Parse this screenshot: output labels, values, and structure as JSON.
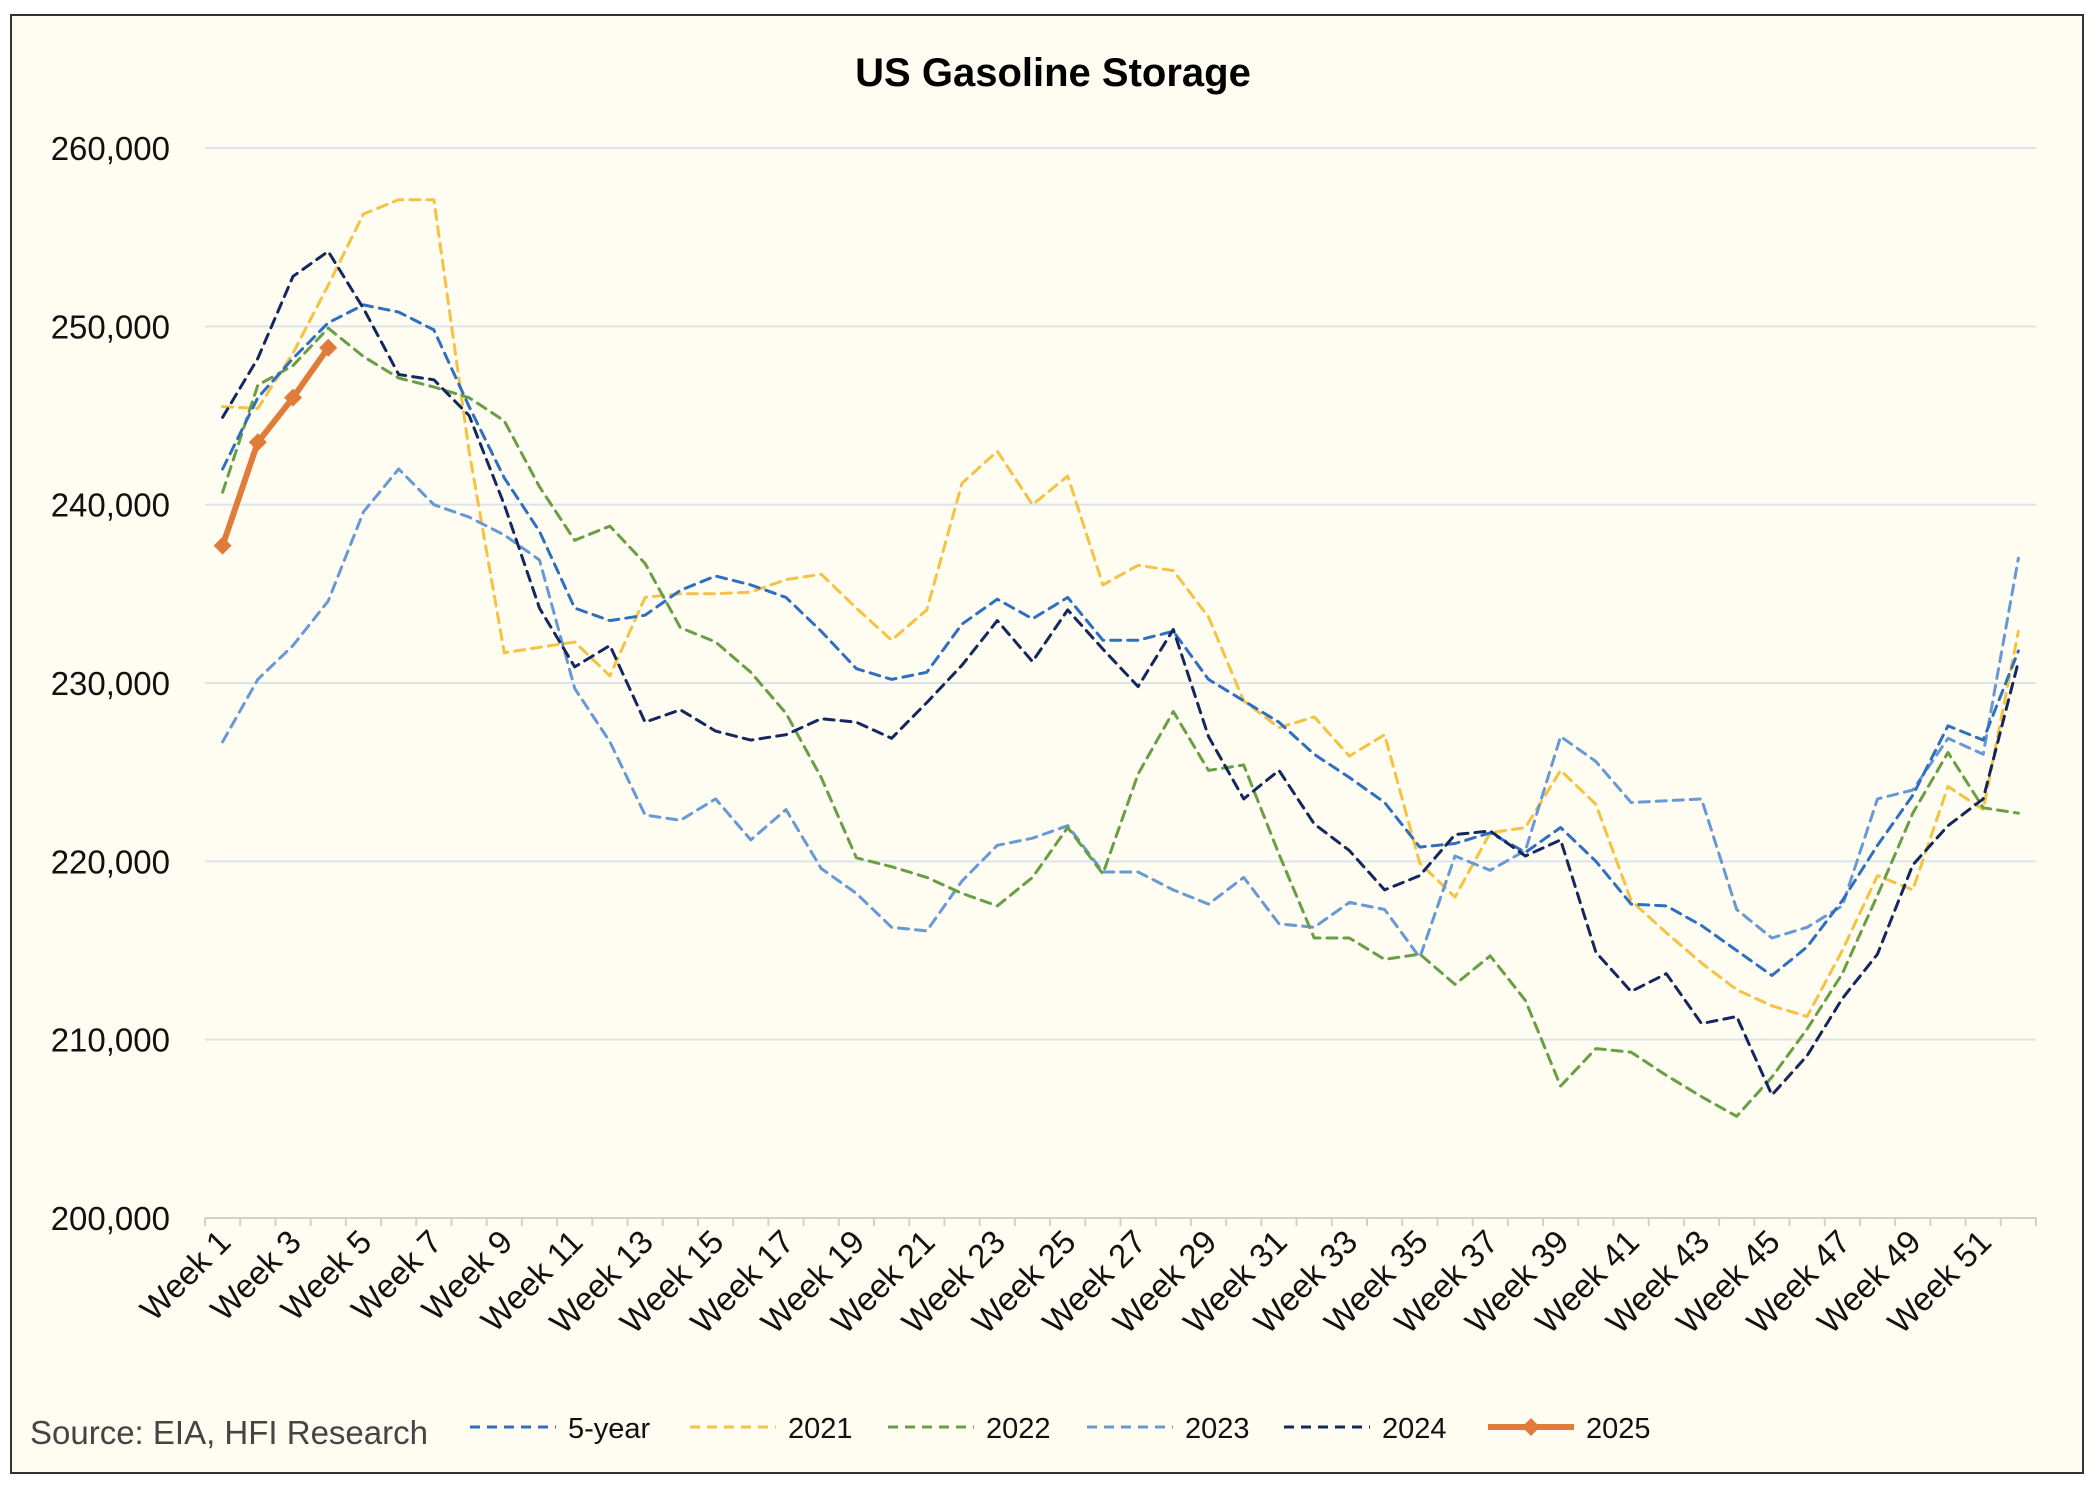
{
  "chart_data": {
    "type": "line",
    "title": "US Gasoline Storage",
    "source_note": "Source: EIA, HFI Research",
    "xlabel": "",
    "ylabel": "",
    "ylim": [
      200000,
      260000
    ],
    "y_ticks": [
      200000,
      210000,
      220000,
      230000,
      240000,
      250000,
      260000
    ],
    "y_tick_labels": [
      "200,000",
      "210,000",
      "220,000",
      "230,000",
      "240,000",
      "250,000",
      "260,000"
    ],
    "x_tick_labels": [
      "Week 1",
      "Week 3",
      "Week 5",
      "Week 7",
      "Week 9",
      "Week 11",
      "Week 13",
      "Week 15",
      "Week 17",
      "Week 19",
      "Week 21",
      "Week 23",
      "Week 25",
      "Week 27",
      "Week 29",
      "Week 31",
      "Week 33",
      "Week 35",
      "Week 37",
      "Week 39",
      "Week 41",
      "Week 43",
      "Week 45",
      "Week 47",
      "Week 49",
      "Week 51"
    ],
    "grid": true,
    "legend_position": "bottom",
    "series": [
      {
        "name": "5-year",
        "color": "#2e6fc0",
        "style": "dashed",
        "values": [
          242000,
          246000,
          248200,
          250200,
          251200,
          250800,
          249800,
          245500,
          241500,
          238500,
          234200,
          233500,
          233800,
          235200,
          236000,
          235500,
          234800,
          232900,
          230800,
          230200,
          230600,
          233300,
          234700,
          233600,
          234800,
          232400,
          232400,
          232900,
          230200,
          229000,
          227800,
          226000,
          224700,
          223300,
          220800,
          221000,
          221600,
          220500,
          221900,
          220000,
          217600,
          217500,
          216400,
          215000,
          213600,
          215200,
          217800,
          220900,
          223700,
          227600,
          226800,
          231800
        ]
      },
      {
        "name": "2021",
        "color": "#f5c242",
        "style": "dashed",
        "values": [
          245500,
          245400,
          248500,
          252300,
          256300,
          257100,
          257100,
          243000,
          231700,
          232000,
          232300,
          230400,
          234800,
          235000,
          235000,
          235100,
          235800,
          236100,
          234200,
          232400,
          234100,
          241200,
          243000,
          240000,
          241600,
          235500,
          236600,
          236300,
          233700,
          229000,
          227500,
          228100,
          225900,
          227100,
          219900,
          218000,
          221600,
          221900,
          225100,
          223200,
          217800,
          216000,
          214300,
          212800,
          211900,
          211300,
          215000,
          219200,
          218400,
          224200,
          222900,
          232900
        ]
      },
      {
        "name": "2022",
        "color": "#6a9e43",
        "style": "dashed",
        "values": [
          240700,
          246700,
          247800,
          249900,
          248300,
          247100,
          246600,
          246000,
          244700,
          241000,
          238000,
          238800,
          236700,
          233100,
          232300,
          230600,
          228300,
          224700,
          220200,
          219700,
          219100,
          218200,
          217500,
          219100,
          221900,
          219300,
          224900,
          228400,
          225100,
          225400,
          220400,
          215700,
          215700,
          214500,
          214800,
          213100,
          214700,
          212200,
          207400,
          209500,
          209300,
          208000,
          206800,
          205700,
          207900,
          210600,
          213700,
          218100,
          222700,
          226100,
          223000,
          222700
        ]
      },
      {
        "name": "2023",
        "color": "#6699d5",
        "style": "dashed",
        "values": [
          226700,
          230200,
          232100,
          234600,
          239600,
          242000,
          240000,
          239300,
          238300,
          236900,
          229700,
          226700,
          222600,
          222300,
          223500,
          221200,
          222900,
          219600,
          218200,
          216300,
          216100,
          218900,
          220900,
          221300,
          222000,
          219400,
          219400,
          218400,
          217600,
          219100,
          216500,
          216300,
          217700,
          217300,
          214600,
          220300,
          219500,
          220600,
          227000,
          225600,
          223300,
          223400,
          223500,
          217300,
          215700,
          216300,
          217500,
          223500,
          224000,
          226900,
          226000,
          237000
        ]
      },
      {
        "name": "2024",
        "color": "#14275e",
        "style": "dashed",
        "values": [
          244900,
          248200,
          252800,
          254200,
          251000,
          247300,
          247000,
          245000,
          240000,
          234200,
          230900,
          232100,
          227800,
          228500,
          227300,
          226800,
          227100,
          228000,
          227800,
          226900,
          228900,
          231000,
          233500,
          231200,
          234100,
          231900,
          229800,
          233000,
          227000,
          223500,
          225100,
          222100,
          220600,
          218400,
          219200,
          221500,
          221700,
          220300,
          221200,
          214900,
          212700,
          213700,
          210900,
          211300,
          206900,
          209100,
          212300,
          214800,
          219800,
          222000,
          223500,
          231200
        ]
      },
      {
        "name": "2025",
        "color": "#e07b39",
        "style": "solid-marker",
        "values": [
          237700,
          243500,
          246000,
          248800
        ]
      }
    ]
  }
}
